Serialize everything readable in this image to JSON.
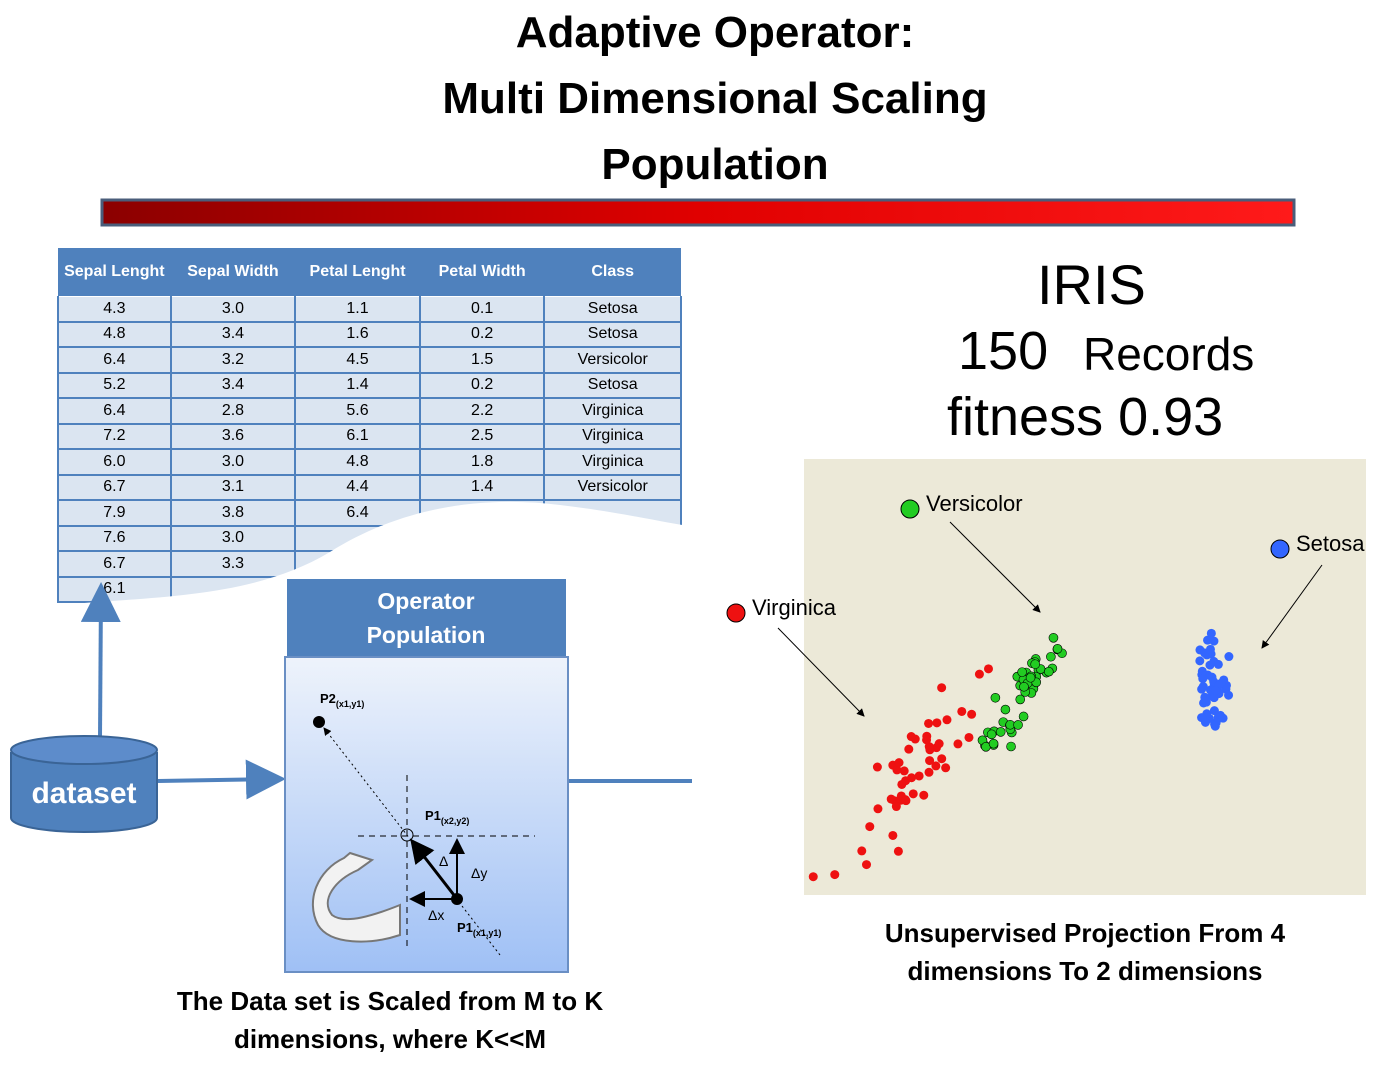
{
  "title": [
    "Adaptive Operator:",
    "Multi Dimensional Scaling",
    "Population"
  ],
  "table": {
    "header": [
      "Sepal Lenght",
      "Sepal Width",
      "Petal Lenght",
      "Petal Width",
      "Class"
    ],
    "rows": [
      [
        "4.3",
        "3.0",
        "1.1",
        "0.1",
        "Setosa"
      ],
      [
        "4.8",
        "3.4",
        "1.6",
        "0.2",
        "Setosa"
      ],
      [
        "6.4",
        "3.2",
        "4.5",
        "1.5",
        "Versicolor"
      ],
      [
        "5.2",
        "3.4",
        "1.4",
        "0.2",
        "Setosa"
      ],
      [
        "6.4",
        "2.8",
        "5.6",
        "2.2",
        "Virginica"
      ],
      [
        "7.2",
        "3.6",
        "6.1",
        "2.5",
        "Virginica"
      ],
      [
        "6.0",
        "3.0",
        "4.8",
        "1.8",
        "Virginica"
      ],
      [
        "6.7",
        "3.1",
        "4.4",
        "1.4",
        "Versicolor"
      ],
      [
        "7.9",
        "3.8",
        "6.4"
      ],
      [
        "7.6",
        "3.0"
      ],
      [
        "6.7",
        "3.3"
      ],
      [
        "6.1"
      ]
    ]
  },
  "dataset_label": "dataset",
  "operator_box": {
    "title": "Operator Population",
    "p2": "P2",
    "p2_sub": "(x1,y1)",
    "p1_new": "P1",
    "p1_new_sub": "(x2,y2)",
    "p1": "P1",
    "p1_sub": "(x1,y1)",
    "delta_x": "Δx",
    "delta_y": "Δy",
    "delta": "Δ"
  },
  "iris": {
    "name": "IRIS",
    "records_count": "150",
    "records_label": "Records",
    "fitness": "fitness 0.93"
  },
  "scatter": {
    "legend": [
      {
        "name": "Versicolor",
        "color": "#22cc22"
      },
      {
        "name": "Setosa",
        "color": "#3366ff"
      },
      {
        "name": "Virginica",
        "color": "#ee1111"
      }
    ]
  },
  "captions": {
    "left": "The Data set is Scaled from M to K dimensions, where  K<<M",
    "right": "Unsupervised Projection From 4 dimensions To 2 dimensions"
  }
}
